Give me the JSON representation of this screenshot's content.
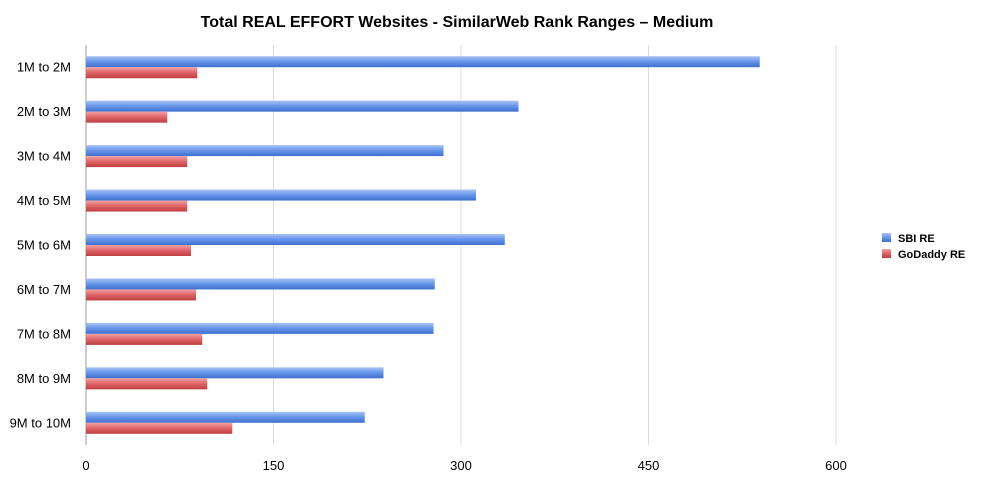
{
  "chart_data": {
    "type": "bar",
    "orientation": "horizontal",
    "title": "Total REAL EFFORT Websites - SimilarWeb Rank Ranges – Medium",
    "xlabel": "",
    "ylabel": "",
    "categories": [
      "1M to 2M",
      "2M to 3M",
      "3M to 4M",
      "4M to 5M",
      "5M to 6M",
      "6M to 7M",
      "7M to 8M",
      "8M to 9M",
      "9M to 10M"
    ],
    "series": [
      {
        "name": "SBI RE",
        "color": "#5b8de6",
        "values": [
          539,
          346,
          286,
          312,
          335,
          279,
          278,
          238,
          223
        ]
      },
      {
        "name": "GoDaddy RE",
        "color": "#db5b5e",
        "values": [
          89,
          65,
          81,
          81,
          84,
          88,
          93,
          97,
          117
        ]
      }
    ],
    "xlim": [
      0,
      600
    ],
    "xticks": [
      "0",
      "150",
      "300",
      "450",
      "600"
    ],
    "grid": true,
    "legend_position": "right"
  }
}
